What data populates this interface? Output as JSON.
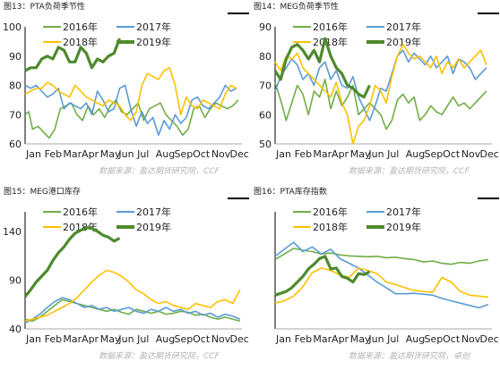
{
  "colors": {
    "2016": "#70ad47",
    "2017": "#5b9bd5",
    "2018": "#ffc000",
    "2019": "#4e8a2e",
    "axis": "#aaaaaa",
    "title_bar": "#000000",
    "source": "#b3b3b3"
  },
  "months": [
    "Jan",
    "Feb",
    "Mar",
    "Apr",
    "May",
    "Jun",
    "Jul",
    "Aug",
    "Sep",
    "Oct",
    "Nov",
    "Dec"
  ],
  "chart_data": [
    {
      "type": "line",
      "title": "图13：PTA负荷季节性",
      "source": "数据来源：盈达期货研究院，CCF",
      "xticks": [
        "Jan",
        "Feb",
        "Mar",
        "Apr",
        "May",
        "Jun",
        "Jul",
        "Aug",
        "Sep",
        "Oct",
        "Nov",
        "Dec"
      ],
      "ylim": [
        60,
        100
      ],
      "yticks": [
        60,
        70,
        80,
        90,
        100
      ],
      "legend": [
        "2016年",
        "2017年",
        "2018年",
        "2019年"
      ],
      "series": [
        {
          "name": "2016年",
          "x": [
            0.0,
            0.2,
            0.4,
            0.7,
            1.0,
            1.3,
            1.6,
            1.9,
            2.2,
            2.5,
            2.8,
            3.1,
            3.4,
            3.7,
            4.0,
            4.3,
            4.6,
            4.9,
            5.2,
            5.5,
            5.8,
            6.1,
            6.4,
            6.7,
            7.0,
            7.3,
            7.6,
            7.9,
            8.2,
            8.5,
            8.8,
            9.1,
            9.4,
            9.7,
            10.0,
            10.3,
            10.6,
            10.9,
            11.2,
            11.5
          ],
          "values": [
            70,
            71,
            65,
            66,
            64,
            62,
            65,
            72,
            73,
            74,
            70,
            68,
            73,
            70,
            72,
            69,
            73,
            75,
            71,
            70,
            72,
            74,
            68,
            72,
            73,
            74,
            70,
            68,
            66,
            63,
            65,
            72,
            73,
            69,
            72,
            74,
            73,
            72,
            73,
            75
          ]
        },
        {
          "name": "2017年",
          "x": [
            0.0,
            0.3,
            0.6,
            0.9,
            1.2,
            1.5,
            1.8,
            2.1,
            2.4,
            2.7,
            3.0,
            3.3,
            3.6,
            3.9,
            4.2,
            4.5,
            4.8,
            5.1,
            5.4,
            5.7,
            6.0,
            6.3,
            6.6,
            6.9,
            7.2,
            7.5,
            7.8,
            8.1,
            8.4,
            8.7,
            9.0,
            9.3,
            9.6,
            9.9,
            10.2,
            10.5,
            10.8,
            11.1,
            11.4
          ],
          "values": [
            80,
            79,
            80,
            78,
            76,
            77,
            79,
            72,
            74,
            73,
            72,
            74,
            70,
            78,
            75,
            71,
            72,
            79,
            80,
            72,
            66,
            71,
            67,
            69,
            63,
            68,
            65,
            70,
            67,
            69,
            75,
            76,
            73,
            72,
            74,
            76,
            80,
            78,
            79
          ]
        },
        {
          "name": "2018年",
          "x": [
            0.0,
            0.3,
            0.6,
            0.9,
            1.2,
            1.5,
            1.8,
            2.1,
            2.4,
            2.7,
            3.0,
            3.3,
            3.6,
            3.9,
            4.2,
            4.5,
            4.8,
            5.1,
            5.4,
            5.7,
            6.0,
            6.3,
            6.6,
            6.9,
            7.2,
            7.5,
            7.8,
            8.1,
            8.4,
            8.7,
            9.0,
            9.3,
            9.6,
            9.9,
            10.2,
            10.5,
            10.8,
            11.1,
            11.4
          ],
          "values": [
            77,
            78,
            79,
            79,
            81,
            80,
            78,
            77,
            76,
            80,
            78,
            76,
            75,
            74,
            73,
            75,
            74,
            73,
            70,
            68,
            71,
            80,
            84,
            83,
            82,
            85,
            86,
            80,
            70,
            76,
            73,
            72,
            75,
            74,
            73,
            72,
            77,
            80,
            79
          ]
        },
        {
          "name": "2019年",
          "x": [
            0.0,
            0.3,
            0.6,
            0.9,
            1.2,
            1.5,
            1.8,
            2.1,
            2.4,
            2.7,
            3.0,
            3.3,
            3.6,
            3.9,
            4.2,
            4.5,
            4.8,
            5.1
          ],
          "values": [
            85,
            86,
            86,
            89,
            90,
            89,
            93,
            92,
            88,
            88,
            93,
            91,
            86,
            89,
            88,
            90,
            91,
            96
          ]
        }
      ]
    },
    {
      "type": "line",
      "title": "图14：MEG负荷季节性",
      "source": "数据来源：盈达期货研究院，CCF",
      "xticks": [
        "Jan",
        "Feb",
        "Mar",
        "Apr",
        "May",
        "Jun",
        "Jul",
        "Aug",
        "Sep",
        "Oct",
        "Nov",
        "Dec"
      ],
      "ylim": [
        50,
        90
      ],
      "yticks": [
        50,
        60,
        70,
        80,
        90
      ],
      "legend": [
        "2016年",
        "2017年",
        "2018年",
        "2019年"
      ],
      "series": [
        {
          "name": "2016年",
          "x": [
            0.0,
            0.3,
            0.6,
            0.9,
            1.2,
            1.5,
            1.8,
            2.1,
            2.4,
            2.7,
            3.0,
            3.3,
            3.6,
            3.9,
            4.2,
            4.5,
            4.8,
            5.1,
            5.4,
            5.7,
            6.0,
            6.3,
            6.6,
            6.9,
            7.2,
            7.5,
            7.8,
            8.1,
            8.4,
            8.7,
            9.0,
            9.3,
            9.6,
            9.9,
            10.2,
            10.5,
            10.8,
            11.1,
            11.4
          ],
          "values": [
            71,
            65,
            58,
            64,
            70,
            67,
            60,
            68,
            66,
            72,
            62,
            68,
            63,
            66,
            70,
            60,
            62,
            64,
            62,
            60,
            55,
            58,
            65,
            67,
            64,
            66,
            58,
            60,
            63,
            61,
            60,
            63,
            66,
            63,
            64,
            62,
            64,
            66,
            68
          ]
        },
        {
          "name": "2017年",
          "x": [
            0.0,
            0.3,
            0.6,
            0.9,
            1.2,
            1.5,
            1.8,
            2.1,
            2.4,
            2.7,
            3.0,
            3.3,
            3.6,
            3.9,
            4.2,
            4.5,
            4.8,
            5.1,
            5.4,
            5.7,
            6.0,
            6.3,
            6.6,
            6.9,
            7.2,
            7.5,
            7.8,
            8.1,
            8.4,
            8.7,
            9.0,
            9.3,
            9.6,
            9.9,
            10.2,
            10.5,
            10.8,
            11.1,
            11.4
          ],
          "values": [
            68,
            73,
            76,
            79,
            77,
            72,
            74,
            70,
            76,
            78,
            72,
            75,
            70,
            69,
            73,
            66,
            62,
            58,
            63,
            69,
            68,
            74,
            80,
            82,
            78,
            81,
            79,
            77,
            80,
            76,
            78,
            80,
            74,
            79,
            78,
            76,
            72,
            74,
            76
          ]
        },
        {
          "name": "2018年",
          "x": [
            0.0,
            0.3,
            0.6,
            0.9,
            1.2,
            1.5,
            1.8,
            2.1,
            2.4,
            2.7,
            3.0,
            3.3,
            3.6,
            3.9,
            4.2,
            4.5,
            4.8,
            5.1,
            5.4,
            5.7,
            6.0,
            6.3,
            6.6,
            6.9,
            7.2,
            7.5,
            7.8,
            8.1,
            8.4,
            8.7,
            9.0,
            9.3,
            9.6,
            9.9,
            10.2,
            10.5,
            10.8,
            11.1,
            11.4
          ],
          "values": [
            78,
            75,
            80,
            79,
            81,
            76,
            74,
            72,
            70,
            68,
            66,
            71,
            64,
            60,
            50,
            56,
            58,
            63,
            70,
            68,
            64,
            73,
            80,
            84,
            81,
            79,
            80,
            78,
            76,
            80,
            74,
            78,
            76,
            79,
            76,
            78,
            80,
            82,
            77
          ]
        },
        {
          "name": "2019年",
          "x": [
            0.0,
            0.3,
            0.6,
            0.9,
            1.2,
            1.5,
            1.8,
            2.1,
            2.4,
            2.7,
            3.0,
            3.3,
            3.6,
            3.9,
            4.2,
            4.5,
            4.8,
            5.1
          ],
          "values": [
            75,
            72,
            79,
            83,
            84,
            82,
            79,
            82,
            78,
            86,
            80,
            76,
            74,
            70,
            69,
            67,
            66,
            70
          ]
        }
      ]
    },
    {
      "type": "line",
      "title": "图15：MEG港口库存",
      "source": "数据来源：盈达期货研究院，CCF",
      "xticks": [
        "Jan",
        "Feb",
        "Mar",
        "Apr",
        "May",
        "Jun",
        "Jul",
        "Aug",
        "Sep",
        "Oct",
        "Nov",
        "Dec"
      ],
      "ylim": [
        40,
        160
      ],
      "yticks": [
        40,
        90,
        140
      ],
      "legend": [
        "2016年",
        "2017年",
        "2018年",
        "2019年"
      ],
      "series": [
        {
          "name": "2016年",
          "x": [
            0.0,
            0.4,
            0.8,
            1.2,
            1.6,
            2.0,
            2.4,
            2.8,
            3.2,
            3.6,
            4.0,
            4.4,
            4.8,
            5.2,
            5.6,
            6.0,
            6.4,
            6.8,
            7.2,
            7.6,
            8.0,
            8.4,
            8.8,
            9.2,
            9.6,
            10.0,
            10.4,
            10.8,
            11.2,
            11.6
          ],
          "values": [
            50,
            48,
            52,
            58,
            64,
            70,
            68,
            66,
            64,
            62,
            60,
            58,
            60,
            57,
            55,
            60,
            58,
            56,
            58,
            55,
            56,
            58,
            57,
            54,
            55,
            52,
            50,
            52,
            50,
            48
          ]
        },
        {
          "name": "2017年",
          "x": [
            0.0,
            0.4,
            0.8,
            1.2,
            1.6,
            2.0,
            2.4,
            2.8,
            3.2,
            3.6,
            4.0,
            4.4,
            4.8,
            5.2,
            5.6,
            6.0,
            6.4,
            6.8,
            7.2,
            7.6,
            8.0,
            8.4,
            8.8,
            9.2,
            9.6,
            10.0,
            10.4,
            10.8,
            11.2,
            11.6
          ],
          "values": [
            46,
            50,
            55,
            62,
            68,
            72,
            70,
            66,
            62,
            64,
            60,
            62,
            58,
            60,
            62,
            58,
            56,
            60,
            58,
            62,
            58,
            60,
            56,
            58,
            54,
            56,
            52,
            55,
            53,
            50
          ]
        },
        {
          "name": "2018年",
          "x": [
            0.0,
            0.4,
            0.8,
            1.2,
            1.6,
            2.0,
            2.4,
            2.8,
            3.2,
            3.6,
            4.0,
            4.4,
            4.8,
            5.2,
            5.6,
            6.0,
            6.4,
            6.8,
            7.2,
            7.6,
            8.0,
            8.4,
            8.8,
            9.2,
            9.6,
            10.0,
            10.4,
            10.8,
            11.2,
            11.6
          ],
          "values": [
            48,
            50,
            52,
            54,
            58,
            62,
            66,
            72,
            80,
            88,
            95,
            100,
            98,
            94,
            88,
            80,
            76,
            70,
            66,
            68,
            64,
            62,
            60,
            66,
            64,
            62,
            68,
            70,
            66,
            80
          ]
        },
        {
          "name": "2019年",
          "x": [
            0.0,
            0.3,
            0.6,
            0.9,
            1.2,
            1.5,
            1.8,
            2.1,
            2.4,
            2.7,
            3.0,
            3.3,
            3.6,
            3.9,
            4.2,
            4.5,
            4.8,
            5.1
          ],
          "values": [
            73,
            80,
            88,
            94,
            100,
            110,
            118,
            124,
            132,
            138,
            141,
            144,
            143,
            140,
            136,
            134,
            130,
            133
          ]
        }
      ]
    },
    {
      "type": "line",
      "title": "图16：PTA库存指数",
      "source": "数据来源：盈达期货研究院，卓创",
      "xticks": [
        "Jan",
        "Feb",
        "Mar",
        "Apr",
        "May",
        "Jun",
        "Jul",
        "Aug",
        "Sep",
        "Oct",
        "Nov",
        "Dec"
      ],
      "ylim": [
        0,
        250
      ],
      "yticks": [],
      "legend": [
        "2016年",
        "2017年",
        "2018年",
        "2019年"
      ],
      "series": [
        {
          "name": "2016年",
          "x": [
            0.0,
            0.5,
            1.0,
            1.5,
            2.0,
            2.5,
            3.0,
            3.5,
            4.0,
            4.5,
            5.0,
            5.5,
            6.0,
            6.5,
            7.0,
            7.5,
            8.0,
            8.5,
            9.0,
            9.5,
            10.0,
            10.5,
            11.0,
            11.5
          ],
          "values": [
            148,
            160,
            172,
            168,
            165,
            160,
            162,
            158,
            156,
            155,
            154,
            155,
            152,
            153,
            150,
            148,
            143,
            145,
            140,
            138,
            142,
            140,
            145,
            148
          ]
        },
        {
          "name": "2017年",
          "x": [
            0.0,
            0.5,
            1.0,
            1.5,
            2.0,
            2.5,
            3.0,
            3.5,
            4.0,
            4.5,
            5.0,
            5.5,
            6.0,
            6.5,
            7.0,
            7.5,
            8.0,
            8.5,
            9.0,
            9.5,
            10.0,
            10.5,
            11.0,
            11.5
          ],
          "values": [
            155,
            170,
            185,
            165,
            175,
            160,
            170,
            150,
            140,
            130,
            115,
            100,
            88,
            75,
            75,
            76,
            74,
            72,
            65,
            60,
            55,
            50,
            45,
            52
          ]
        },
        {
          "name": "2018年",
          "x": [
            0.0,
            0.5,
            1.0,
            1.5,
            2.0,
            2.5,
            3.0,
            3.5,
            4.0,
            4.5,
            5.0,
            5.5,
            6.0,
            6.5,
            7.0,
            7.5,
            8.0,
            8.5,
            9.0,
            9.5,
            10.0,
            10.5,
            11.0,
            11.5
          ],
          "values": [
            55,
            60,
            70,
            90,
            120,
            130,
            125,
            115,
            110,
            130,
            125,
            118,
            100,
            95,
            88,
            82,
            80,
            78,
            110,
            100,
            80,
            72,
            70,
            68
          ]
        },
        {
          "name": "2019年",
          "x": [
            0.0,
            0.3,
            0.6,
            0.9,
            1.2,
            1.5,
            1.8,
            2.1,
            2.4,
            2.7,
            3.0,
            3.3,
            3.6,
            3.9,
            4.2,
            4.5,
            4.8,
            5.1
          ],
          "values": [
            72,
            76,
            80,
            88,
            100,
            112,
            128,
            138,
            150,
            155,
            128,
            130,
            112,
            108,
            100,
            118,
            116,
            122
          ]
        }
      ]
    }
  ]
}
